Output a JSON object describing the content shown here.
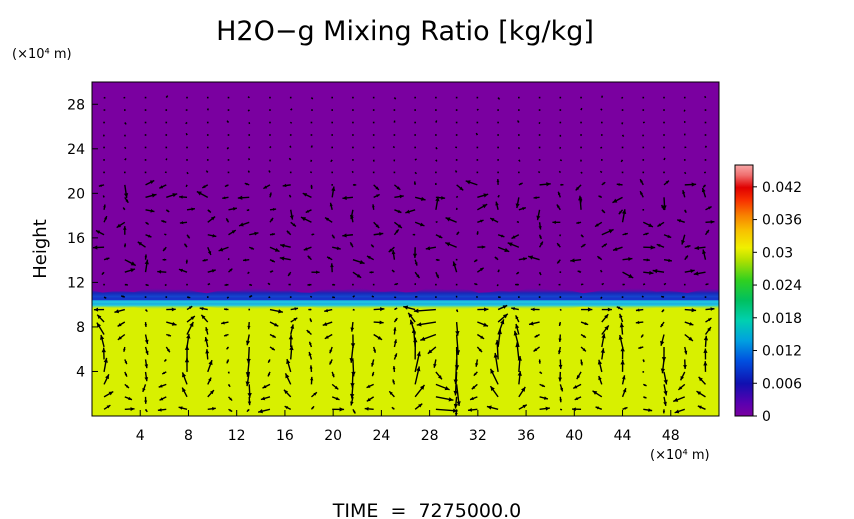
{
  "chart_data": {
    "type": "heatmap",
    "title": "H2O−g Mixing Ratio [kg/kg]",
    "ylabel": "Height",
    "x_unit": "(×10⁴ m)",
    "y_unit": "(×10⁴ m)",
    "footer": "TIME  =  7275000.0",
    "xlim": [
      0,
      52
    ],
    "ylim": [
      0,
      30
    ],
    "x_ticks": [
      4,
      8,
      12,
      16,
      20,
      24,
      28,
      32,
      36,
      40,
      44,
      48
    ],
    "y_ticks": [
      4,
      8,
      12,
      16,
      20,
      24,
      28
    ],
    "colorbar": {
      "range": [
        0,
        0.046
      ],
      "ticks": [
        0,
        0.006,
        0.012,
        0.018,
        0.024,
        0.03,
        0.036,
        0.042
      ],
      "tick_labels": [
        "0",
        "0.006",
        "0.012",
        "0.018",
        "0.024",
        "0.03",
        "0.036",
        "0.042"
      ]
    },
    "field": {
      "lower_layer_value": 0.027,
      "upper_layer_value": 0.0,
      "interface_height": 10.3
    },
    "colors": {
      "upper": "#7a00a0",
      "lower": "#d8f000",
      "interface_dark": "#1830c8",
      "interface_light": "#20c8e0",
      "arrows": "#000000"
    },
    "vectors": "wind vector arrows overlaid on the field",
    "grid": false
  }
}
